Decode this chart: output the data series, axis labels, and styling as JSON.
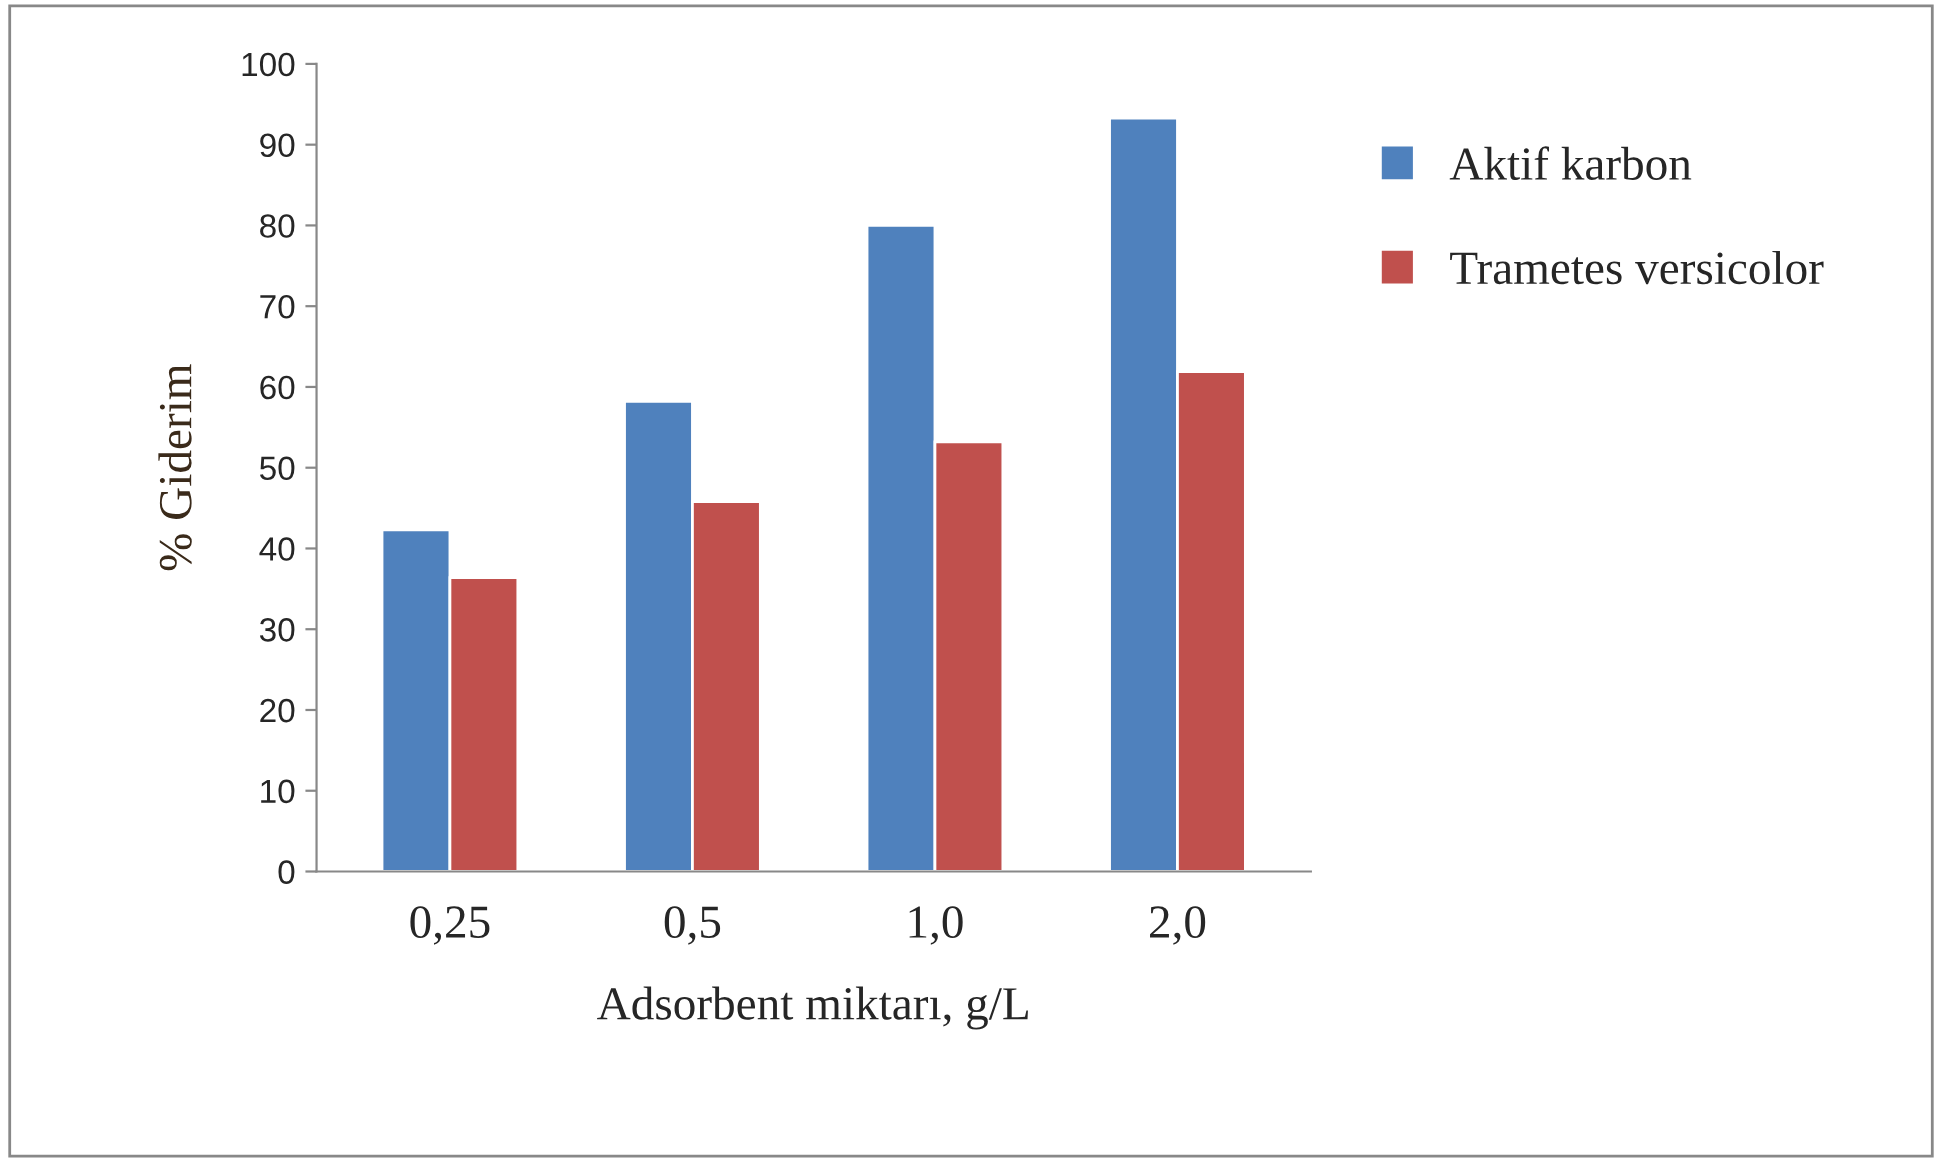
{
  "chart_data": {
    "type": "bar",
    "xlabel": "Adsorbent miktarı, g/L",
    "ylabel": "% Giderim",
    "categories": [
      "0,25",
      "0,5",
      "1,0",
      "2,0"
    ],
    "series": [
      {
        "name": "Aktif karbon",
        "color": "#4f81bd",
        "values": [
          42.3,
          58.2,
          80,
          93.3
        ]
      },
      {
        "name": "Trametes versicolor",
        "color": "#c0504d",
        "values": [
          36.4,
          45.8,
          53.2,
          61.9
        ]
      }
    ],
    "ylim": [
      0,
      100
    ],
    "yticks": [
      0,
      10,
      20,
      30,
      40,
      50,
      60,
      70,
      80,
      90,
      100
    ],
    "grid": false,
    "legend": "right"
  }
}
